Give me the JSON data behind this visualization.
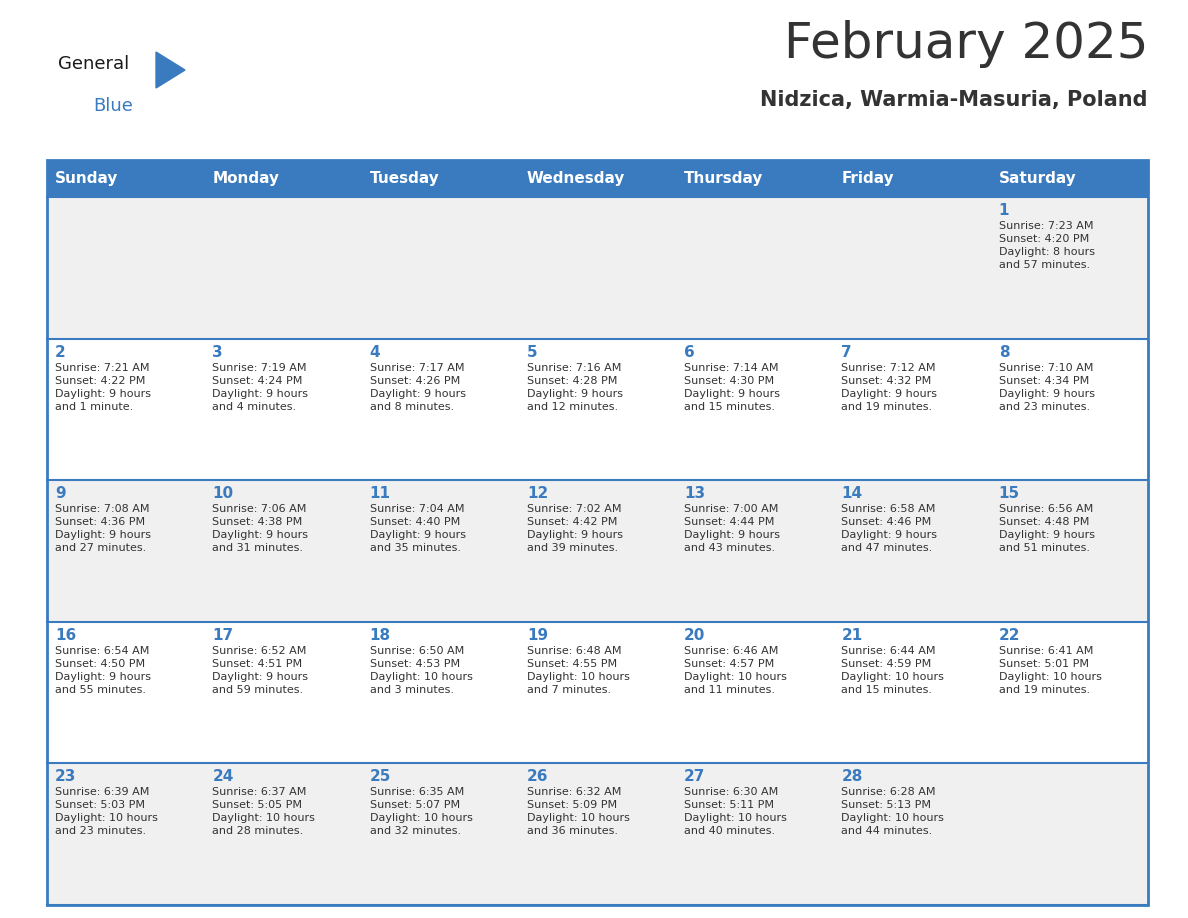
{
  "title": "February 2025",
  "subtitle": "Nidzica, Warmia-Masuria, Poland",
  "header_color": "#3a7bbf",
  "header_text_color": "#ffffff",
  "cell_bg_even": "#f0f0f0",
  "cell_bg_odd": "#ffffff",
  "separator_color": "#3a7bbf",
  "day_number_color": "#3a7bbf",
  "text_color": "#333333",
  "days_of_week": [
    "Sunday",
    "Monday",
    "Tuesday",
    "Wednesday",
    "Thursday",
    "Friday",
    "Saturday"
  ],
  "calendar_data": [
    [
      {
        "day": "",
        "info": ""
      },
      {
        "day": "",
        "info": ""
      },
      {
        "day": "",
        "info": ""
      },
      {
        "day": "",
        "info": ""
      },
      {
        "day": "",
        "info": ""
      },
      {
        "day": "",
        "info": ""
      },
      {
        "day": "1",
        "info": "Sunrise: 7:23 AM\nSunset: 4:20 PM\nDaylight: 8 hours\nand 57 minutes."
      }
    ],
    [
      {
        "day": "2",
        "info": "Sunrise: 7:21 AM\nSunset: 4:22 PM\nDaylight: 9 hours\nand 1 minute."
      },
      {
        "day": "3",
        "info": "Sunrise: 7:19 AM\nSunset: 4:24 PM\nDaylight: 9 hours\nand 4 minutes."
      },
      {
        "day": "4",
        "info": "Sunrise: 7:17 AM\nSunset: 4:26 PM\nDaylight: 9 hours\nand 8 minutes."
      },
      {
        "day": "5",
        "info": "Sunrise: 7:16 AM\nSunset: 4:28 PM\nDaylight: 9 hours\nand 12 minutes."
      },
      {
        "day": "6",
        "info": "Sunrise: 7:14 AM\nSunset: 4:30 PM\nDaylight: 9 hours\nand 15 minutes."
      },
      {
        "day": "7",
        "info": "Sunrise: 7:12 AM\nSunset: 4:32 PM\nDaylight: 9 hours\nand 19 minutes."
      },
      {
        "day": "8",
        "info": "Sunrise: 7:10 AM\nSunset: 4:34 PM\nDaylight: 9 hours\nand 23 minutes."
      }
    ],
    [
      {
        "day": "9",
        "info": "Sunrise: 7:08 AM\nSunset: 4:36 PM\nDaylight: 9 hours\nand 27 minutes."
      },
      {
        "day": "10",
        "info": "Sunrise: 7:06 AM\nSunset: 4:38 PM\nDaylight: 9 hours\nand 31 minutes."
      },
      {
        "day": "11",
        "info": "Sunrise: 7:04 AM\nSunset: 4:40 PM\nDaylight: 9 hours\nand 35 minutes."
      },
      {
        "day": "12",
        "info": "Sunrise: 7:02 AM\nSunset: 4:42 PM\nDaylight: 9 hours\nand 39 minutes."
      },
      {
        "day": "13",
        "info": "Sunrise: 7:00 AM\nSunset: 4:44 PM\nDaylight: 9 hours\nand 43 minutes."
      },
      {
        "day": "14",
        "info": "Sunrise: 6:58 AM\nSunset: 4:46 PM\nDaylight: 9 hours\nand 47 minutes."
      },
      {
        "day": "15",
        "info": "Sunrise: 6:56 AM\nSunset: 4:48 PM\nDaylight: 9 hours\nand 51 minutes."
      }
    ],
    [
      {
        "day": "16",
        "info": "Sunrise: 6:54 AM\nSunset: 4:50 PM\nDaylight: 9 hours\nand 55 minutes."
      },
      {
        "day": "17",
        "info": "Sunrise: 6:52 AM\nSunset: 4:51 PM\nDaylight: 9 hours\nand 59 minutes."
      },
      {
        "day": "18",
        "info": "Sunrise: 6:50 AM\nSunset: 4:53 PM\nDaylight: 10 hours\nand 3 minutes."
      },
      {
        "day": "19",
        "info": "Sunrise: 6:48 AM\nSunset: 4:55 PM\nDaylight: 10 hours\nand 7 minutes."
      },
      {
        "day": "20",
        "info": "Sunrise: 6:46 AM\nSunset: 4:57 PM\nDaylight: 10 hours\nand 11 minutes."
      },
      {
        "day": "21",
        "info": "Sunrise: 6:44 AM\nSunset: 4:59 PM\nDaylight: 10 hours\nand 15 minutes."
      },
      {
        "day": "22",
        "info": "Sunrise: 6:41 AM\nSunset: 5:01 PM\nDaylight: 10 hours\nand 19 minutes."
      }
    ],
    [
      {
        "day": "23",
        "info": "Sunrise: 6:39 AM\nSunset: 5:03 PM\nDaylight: 10 hours\nand 23 minutes."
      },
      {
        "day": "24",
        "info": "Sunrise: 6:37 AM\nSunset: 5:05 PM\nDaylight: 10 hours\nand 28 minutes."
      },
      {
        "day": "25",
        "info": "Sunrise: 6:35 AM\nSunset: 5:07 PM\nDaylight: 10 hours\nand 32 minutes."
      },
      {
        "day": "26",
        "info": "Sunrise: 6:32 AM\nSunset: 5:09 PM\nDaylight: 10 hours\nand 36 minutes."
      },
      {
        "day": "27",
        "info": "Sunrise: 6:30 AM\nSunset: 5:11 PM\nDaylight: 10 hours\nand 40 minutes."
      },
      {
        "day": "28",
        "info": "Sunrise: 6:28 AM\nSunset: 5:13 PM\nDaylight: 10 hours\nand 44 minutes."
      },
      {
        "day": "",
        "info": ""
      }
    ]
  ],
  "logo_text_general": "General",
  "logo_text_blue": "Blue",
  "logo_color_general": "#1a1a1a",
  "logo_color_blue": "#3a7bbf",
  "logo_triangle_color": "#3a7bbf",
  "title_fontsize": 36,
  "subtitle_fontsize": 15,
  "header_fontsize": 11,
  "day_number_fontsize": 11,
  "cell_text_fontsize": 8,
  "logo_fontsize": 13
}
